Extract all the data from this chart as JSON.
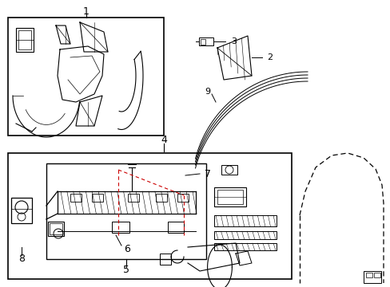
{
  "bg_color": "#ffffff",
  "line_color": "#000000",
  "red_color": "#cc0000",
  "fig_width": 4.89,
  "fig_height": 3.6,
  "dpi": 100
}
